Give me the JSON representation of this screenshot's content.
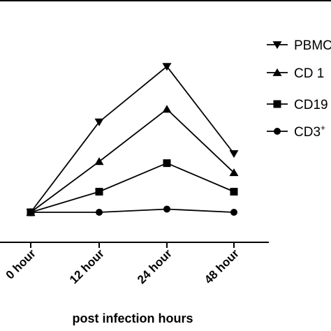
{
  "chart_data": {
    "type": "line",
    "xlabel": "post infection hours",
    "ylabel": "",
    "categories": [
      "0 hour",
      "12 hour",
      "24 hour",
      "48 hour"
    ],
    "ylim": [
      0,
      100
    ],
    "grid": false,
    "legend_placement": "top-right",
    "series": [
      {
        "name": "PBMC",
        "marker": "triangle-down",
        "values": [
          0,
          57,
          92,
          37
        ]
      },
      {
        "name": "CD 1",
        "marker": "triangle-up",
        "values": [
          0,
          32,
          65,
          25
        ]
      },
      {
        "name": "CD19",
        "marker": "square",
        "values": [
          0,
          13,
          31,
          13
        ]
      },
      {
        "name": "CD3",
        "name_superscript": "+",
        "marker": "circle",
        "values": [
          0,
          0,
          2,
          0
        ]
      }
    ]
  }
}
